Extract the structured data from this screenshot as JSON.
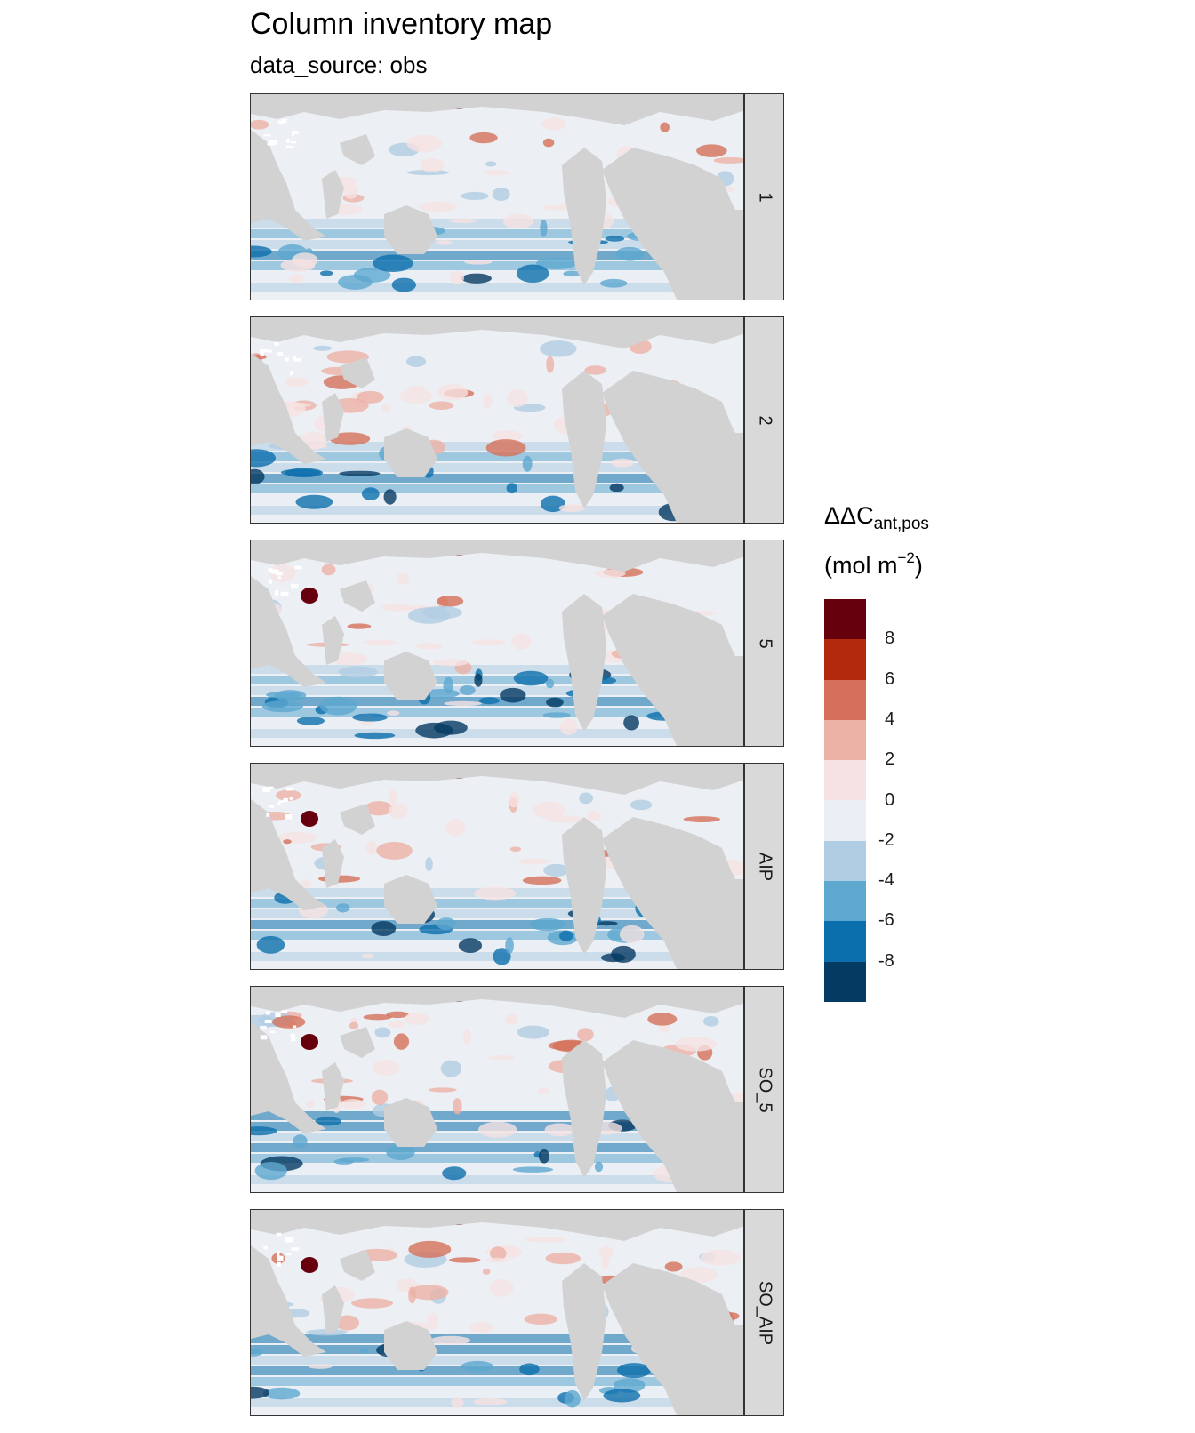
{
  "title": "Column inventory map",
  "subtitle": "data_source: obs",
  "facets": [
    {
      "label": "1"
    },
    {
      "label": "2"
    },
    {
      "label": "5"
    },
    {
      "label": "AIP"
    },
    {
      "label": "SO_5"
    },
    {
      "label": "SO_AIP"
    }
  ],
  "legend": {
    "title_main": "ΔΔC",
    "title_sub": "ant,pos",
    "unit_prefix": "(mol m",
    "unit_sup": "−2",
    "unit_suffix": ")",
    "ticks": [
      "8",
      "6",
      "4",
      "2",
      "0",
      "-2",
      "-4",
      "-6",
      "-8"
    ],
    "colors": [
      "#67000d",
      "#b2290b",
      "#d6705a",
      "#ecb2a6",
      "#f6e2e2",
      "#e9eff5",
      "#b1cde3",
      "#5ea7cf",
      "#0c6fad",
      "#053a62"
    ]
  },
  "colors": {
    "land": "#d2d2d2",
    "ocean_neutral": "#eceff4",
    "ice": "#ffffff"
  }
}
